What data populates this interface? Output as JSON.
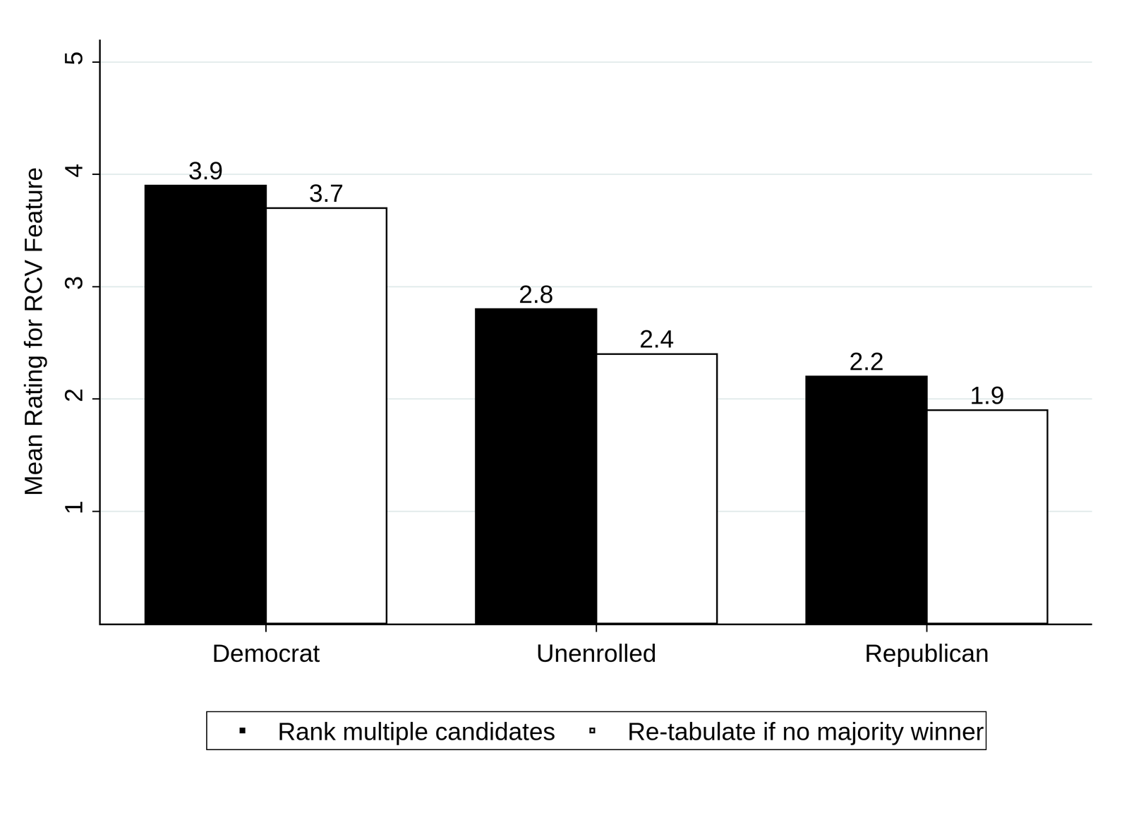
{
  "chart_data": {
    "type": "bar",
    "y_label": "Mean Rating for RCV Feature",
    "categories": [
      "Democrat",
      "Unenrolled",
      "Republican"
    ],
    "series": [
      {
        "name": "Rank multiple candidates",
        "color": "#000000",
        "values": [
          3.9,
          2.8,
          2.2
        ]
      },
      {
        "name": "Re-tabulate if no majority winner",
        "color": "#ffffff",
        "values": [
          3.7,
          2.4,
          1.9
        ]
      }
    ],
    "ylim": [
      0,
      5.2
    ],
    "yticks": [
      1,
      2,
      3,
      4,
      5
    ],
    "grid": true,
    "legend": "bottom",
    "data_labels": true
  }
}
